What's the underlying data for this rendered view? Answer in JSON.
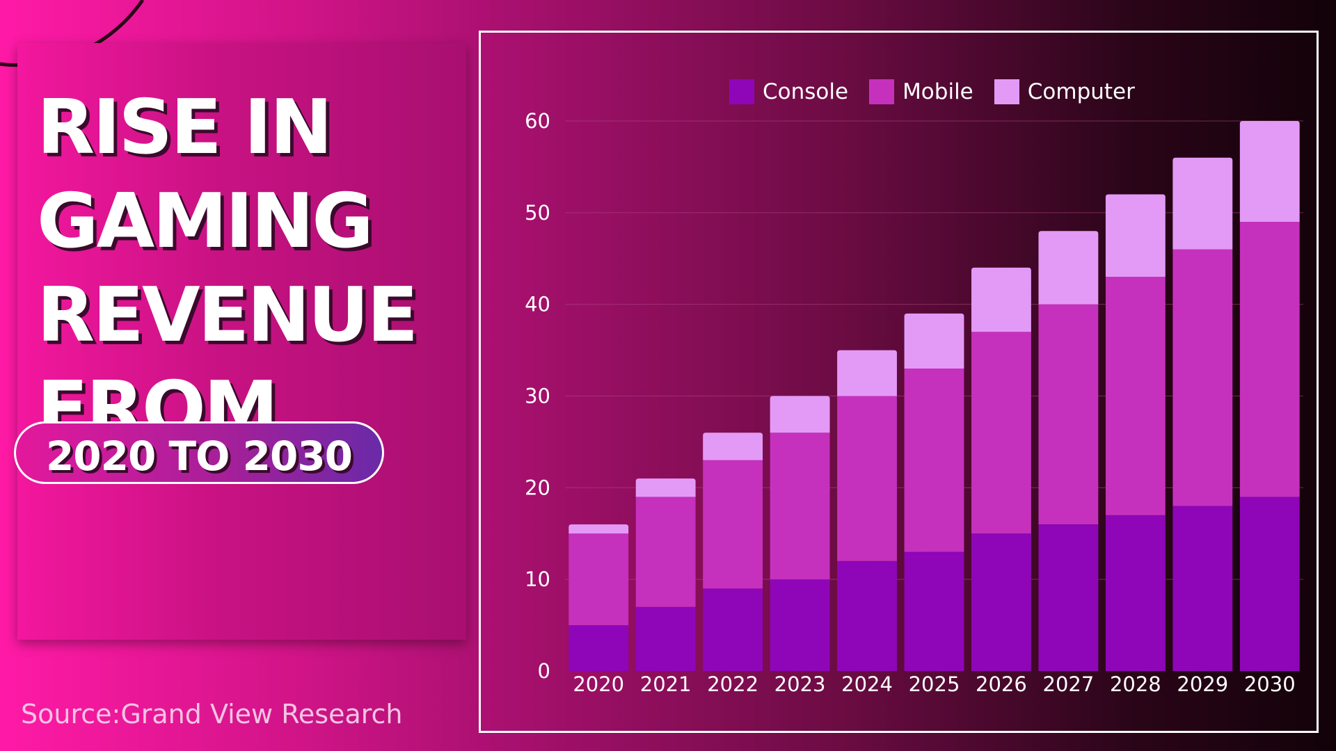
{
  "title": {
    "lines": [
      "RISE IN",
      "GAMING",
      "REVENUE",
      "FROM"
    ],
    "range_badge": "2020 TO 2030"
  },
  "source": "Source:Grand View Research",
  "colors": {
    "console": "#8e06b8",
    "mobile": "#c531bc",
    "computer": "#e39af6",
    "gridline": "#b04a86",
    "text": "#ffffff"
  },
  "chart_data": {
    "type": "bar",
    "stacked": true,
    "title": "RISE IN GAMING REVENUE FROM 2020 TO 2030",
    "xlabel": "",
    "ylabel": "",
    "categories": [
      "2020",
      "2021",
      "2022",
      "2023",
      "2024",
      "2025",
      "2026",
      "2027",
      "2028",
      "2029",
      "2030"
    ],
    "series": [
      {
        "name": "Console",
        "values": [
          5,
          7,
          9,
          10,
          12,
          13,
          15,
          16,
          17,
          18,
          19
        ]
      },
      {
        "name": "Mobile",
        "values": [
          10,
          12,
          14,
          16,
          18,
          20,
          22,
          24,
          26,
          28,
          30
        ]
      },
      {
        "name": "Computer",
        "values": [
          1,
          2,
          3,
          4,
          5,
          6,
          7,
          8,
          9,
          10,
          11
        ]
      }
    ],
    "ylim": [
      0,
      60
    ],
    "yticks": [
      "0",
      "10",
      "20",
      "30",
      "40",
      "50",
      "60"
    ],
    "grid": true,
    "legend_position": "top"
  }
}
